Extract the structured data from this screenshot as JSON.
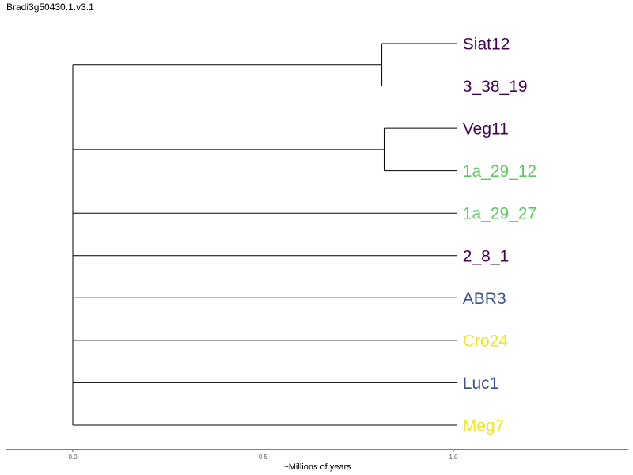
{
  "title": "Bradi3g50430.1.v3.1",
  "colors": {
    "purple": "#440154",
    "green": "#5ec962",
    "blue": "#3b528b",
    "yellow": "#f1e51d",
    "line": "#000000"
  },
  "chart_data": {
    "type": "dendrogram",
    "xlabel": "~Millions of years",
    "xticks": [
      0.0,
      0.5,
      1.0
    ],
    "xtick_labels": [
      "0.0",
      "0.5",
      "1.0"
    ],
    "xlim": [
      -0.17,
      1.47
    ],
    "leaves": [
      {
        "label": "Siat12",
        "color": "#440154"
      },
      {
        "label": "3_38_19",
        "color": "#440154"
      },
      {
        "label": "Veg11",
        "color": "#440154"
      },
      {
        "label": "1a_29_12",
        "color": "#5ec962"
      },
      {
        "label": "1a_29_27",
        "color": "#5ec962"
      },
      {
        "label": "2_8_1",
        "color": "#440154"
      },
      {
        "label": "ABR3",
        "color": "#3b528b"
      },
      {
        "label": "Cro24",
        "color": "#f1e51d"
      },
      {
        "label": "Luc1",
        "color": "#3b528b"
      },
      {
        "label": "Meg7",
        "color": "#f1e51d"
      }
    ],
    "leaf_depth": 1.01,
    "clades": [
      {
        "leaves": [
          0,
          1
        ],
        "node_x": 0.812
      },
      {
        "leaves": [
          2,
          3
        ],
        "node_x": 0.818
      }
    ],
    "root_x": 0.0
  }
}
